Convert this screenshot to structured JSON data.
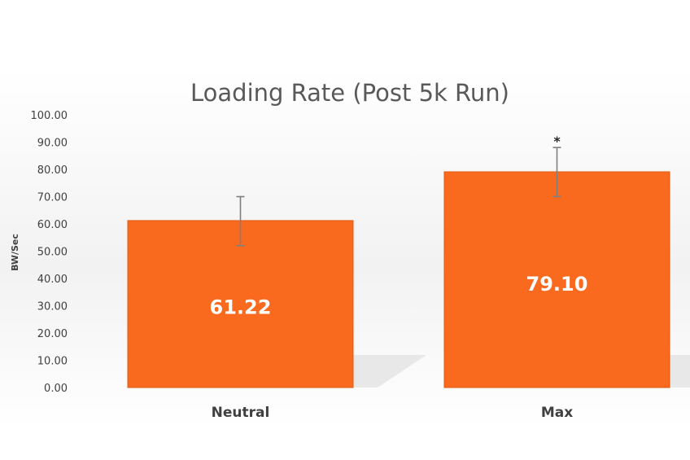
{
  "chart_data": {
    "type": "bar",
    "title": "Loading Rate (Post 5k Run)",
    "xlabel": "",
    "ylabel": "BW/Sec",
    "ylim": [
      0,
      100
    ],
    "yticks": [
      "0.00",
      "10.00",
      "20.00",
      "30.00",
      "40.00",
      "50.00",
      "60.00",
      "70.00",
      "80.00",
      "90.00",
      "100.00"
    ],
    "categories": [
      "Neutral",
      "Max"
    ],
    "values": [
      61.22,
      79.1
    ],
    "data_labels": [
      "61.22",
      "79.10"
    ],
    "error_bars": [
      {
        "low": 52.0,
        "high": 70.0
      },
      {
        "low": 70.0,
        "high": 88.0
      }
    ],
    "significance_markers": [
      "",
      "*"
    ],
    "bar_color": "#F96A1F",
    "error_bar_color": "#7f7f7f",
    "grid": false,
    "legend": "none"
  }
}
